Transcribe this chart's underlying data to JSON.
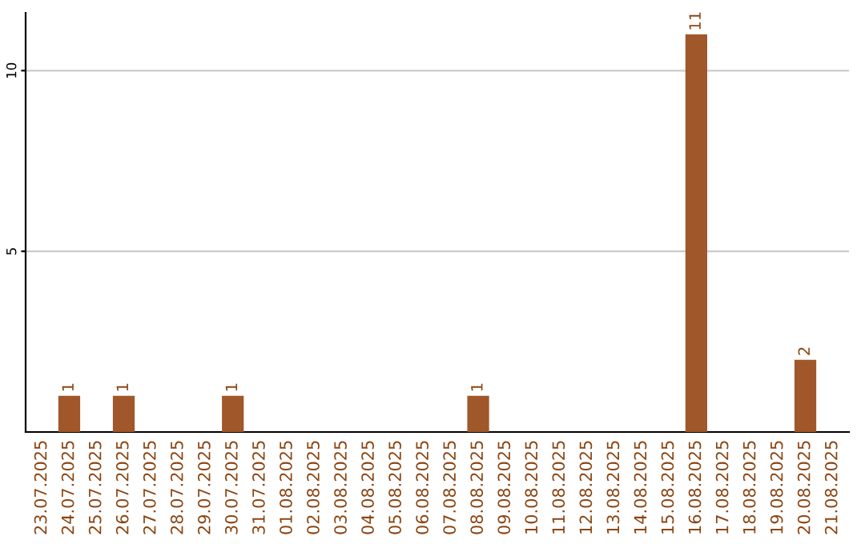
{
  "chart_data": {
    "type": "bar",
    "categories": [
      "23.07.2025",
      "24.07.2025",
      "25.07.2025",
      "26.07.2025",
      "27.07.2025",
      "28.07.2025",
      "29.07.2025",
      "30.07.2025",
      "31.07.2025",
      "01.08.2025",
      "02.08.2025",
      "03.08.2025",
      "04.08.2025",
      "05.08.2025",
      "06.08.2025",
      "07.08.2025",
      "08.08.2025",
      "09.08.2025",
      "10.08.2025",
      "11.08.2025",
      "12.08.2025",
      "13.08.2025",
      "14.08.2025",
      "15.08.2025",
      "16.08.2025",
      "17.08.2025",
      "18.08.2025",
      "19.08.2025",
      "20.08.2025",
      "21.08.2025"
    ],
    "values": [
      0,
      1,
      0,
      1,
      0,
      0,
      0,
      1,
      0,
      0,
      0,
      0,
      0,
      0,
      0,
      0,
      1,
      0,
      0,
      0,
      0,
      0,
      0,
      0,
      11,
      0,
      0,
      0,
      2,
      0
    ],
    "value_labels": [
      null,
      "1",
      null,
      "1",
      null,
      null,
      null,
      "1",
      null,
      null,
      null,
      null,
      null,
      null,
      null,
      null,
      "1",
      null,
      null,
      null,
      null,
      null,
      null,
      null,
      "11",
      null,
      null,
      null,
      "2",
      null
    ],
    "color": "#a0572a",
    "ylim": [
      0,
      11.6
    ],
    "yticks": [
      5,
      10
    ],
    "grid": "y"
  }
}
